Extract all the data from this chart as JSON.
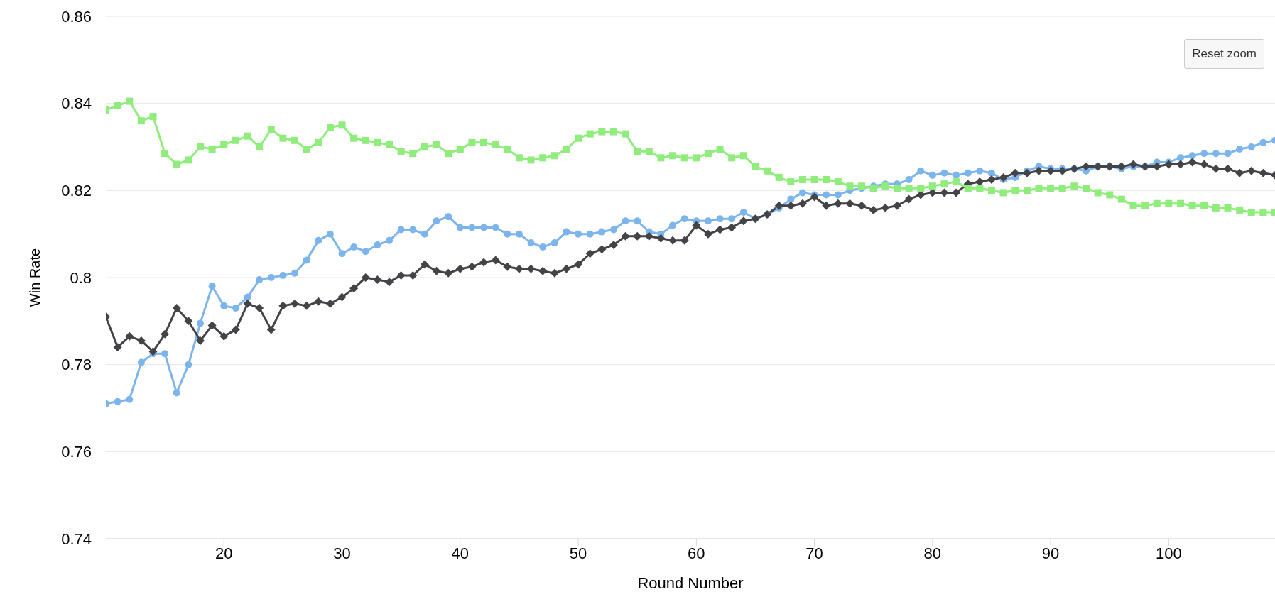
{
  "chart_data": {
    "type": "line",
    "xlabel": "Round Number",
    "ylabel": "Win Rate",
    "annotations": [
      "Reset zoom"
    ],
    "x": [
      10,
      11,
      12,
      13,
      14,
      15,
      16,
      17,
      18,
      19,
      20,
      21,
      22,
      23,
      24,
      25,
      26,
      27,
      28,
      29,
      30,
      31,
      32,
      33,
      34,
      35,
      36,
      37,
      38,
      39,
      40,
      41,
      42,
      43,
      44,
      45,
      46,
      47,
      48,
      49,
      50,
      51,
      52,
      53,
      54,
      55,
      56,
      57,
      58,
      59,
      60,
      61,
      62,
      63,
      64,
      65,
      66,
      67,
      68,
      69,
      70,
      71,
      72,
      73,
      74,
      75,
      76,
      77,
      78,
      79,
      80,
      81,
      82,
      83,
      84,
      85,
      86,
      87,
      88,
      89,
      90,
      91,
      92,
      93,
      94,
      95,
      96,
      97,
      98,
      99,
      100,
      101,
      102,
      103,
      104,
      105,
      106,
      107,
      108,
      109
    ],
    "series": [
      {
        "color": "#7cb5ec",
        "marker": "circle",
        "values": [
          0.771,
          0.7715,
          0.772,
          0.7805,
          0.7825,
          0.7825,
          0.7735,
          0.78,
          0.7895,
          0.798,
          0.7935,
          0.793,
          0.7955,
          0.7995,
          0.8,
          0.8005,
          0.801,
          0.804,
          0.8085,
          0.81,
          0.8055,
          0.807,
          0.806,
          0.8075,
          0.8085,
          0.811,
          0.811,
          0.81,
          0.813,
          0.814,
          0.8115,
          0.8115,
          0.8115,
          0.8115,
          0.81,
          0.81,
          0.808,
          0.807,
          0.808,
          0.8105,
          0.81,
          0.81,
          0.8105,
          0.811,
          0.813,
          0.813,
          0.8105,
          0.81,
          0.812,
          0.8135,
          0.813,
          0.813,
          0.8135,
          0.8135,
          0.815,
          0.8135,
          0.8145,
          0.816,
          0.818,
          0.8195,
          0.819,
          0.819,
          0.819,
          0.82,
          0.8205,
          0.821,
          0.8215,
          0.8215,
          0.8225,
          0.8245,
          0.8235,
          0.824,
          0.8235,
          0.824,
          0.8245,
          0.824,
          0.8225,
          0.823,
          0.8245,
          0.8255,
          0.825,
          0.825,
          0.825,
          0.8245,
          0.8255,
          0.8255,
          0.825,
          0.8255,
          0.8255,
          0.8265,
          0.8265,
          0.8275,
          0.828,
          0.8285,
          0.8285,
          0.8285,
          0.8295,
          0.83,
          0.831,
          0.8315
        ]
      },
      {
        "color": "#434348",
        "marker": "diamond",
        "values": [
          0.791,
          0.784,
          0.7865,
          0.7855,
          0.783,
          0.787,
          0.793,
          0.79,
          0.7855,
          0.789,
          0.7865,
          0.788,
          0.794,
          0.793,
          0.788,
          0.7935,
          0.794,
          0.7935,
          0.7945,
          0.794,
          0.7955,
          0.7975,
          0.8,
          0.7995,
          0.799,
          0.8005,
          0.8005,
          0.803,
          0.8015,
          0.801,
          0.802,
          0.8025,
          0.8035,
          0.804,
          0.8025,
          0.802,
          0.802,
          0.8015,
          0.801,
          0.802,
          0.803,
          0.8055,
          0.8065,
          0.8075,
          0.8095,
          0.8095,
          0.8095,
          0.809,
          0.8085,
          0.8085,
          0.812,
          0.81,
          0.811,
          0.8115,
          0.813,
          0.8135,
          0.8145,
          0.8165,
          0.8165,
          0.817,
          0.8185,
          0.8165,
          0.817,
          0.817,
          0.8165,
          0.8155,
          0.816,
          0.8165,
          0.818,
          0.819,
          0.8195,
          0.8195,
          0.8195,
          0.8215,
          0.822,
          0.8225,
          0.823,
          0.824,
          0.824,
          0.8245,
          0.8245,
          0.8245,
          0.825,
          0.8255,
          0.8255,
          0.8255,
          0.8255,
          0.826,
          0.8255,
          0.8255,
          0.826,
          0.826,
          0.8265,
          0.826,
          0.825,
          0.825,
          0.824,
          0.8245,
          0.824,
          0.8235
        ]
      },
      {
        "color": "#90ed7d",
        "marker": "square",
        "values": [
          0.8385,
          0.8395,
          0.8405,
          0.836,
          0.837,
          0.8285,
          0.826,
          0.827,
          0.83,
          0.8295,
          0.8305,
          0.8315,
          0.8325,
          0.83,
          0.834,
          0.832,
          0.8315,
          0.8295,
          0.831,
          0.8345,
          0.835,
          0.832,
          0.8315,
          0.831,
          0.8305,
          0.829,
          0.8285,
          0.83,
          0.8305,
          0.8285,
          0.8295,
          0.831,
          0.831,
          0.8305,
          0.8295,
          0.8275,
          0.827,
          0.8275,
          0.828,
          0.8295,
          0.832,
          0.833,
          0.8335,
          0.8335,
          0.833,
          0.829,
          0.829,
          0.8275,
          0.828,
          0.8275,
          0.8275,
          0.8285,
          0.8295,
          0.8275,
          0.828,
          0.8255,
          0.8245,
          0.823,
          0.822,
          0.8225,
          0.8225,
          0.8225,
          0.822,
          0.821,
          0.821,
          0.8205,
          0.821,
          0.8205,
          0.8205,
          0.8205,
          0.821,
          0.8215,
          0.822,
          0.8205,
          0.8205,
          0.82,
          0.8195,
          0.82,
          0.82,
          0.8205,
          0.8205,
          0.8205,
          0.821,
          0.8205,
          0.8195,
          0.819,
          0.818,
          0.8165,
          0.8165,
          0.817,
          0.817,
          0.817,
          0.8165,
          0.8165,
          0.816,
          0.816,
          0.8155,
          0.815,
          0.815,
          0.815
        ]
      }
    ],
    "xlim": [
      10,
      109
    ],
    "xticks": [
      20,
      30,
      40,
      50,
      60,
      70,
      80,
      90,
      100
    ],
    "ylim": [
      0.74,
      0.86
    ],
    "yticks": [
      0.74,
      0.76,
      0.78,
      0.8,
      0.82,
      0.84,
      0.86
    ],
    "grid": "y",
    "legend": false
  }
}
